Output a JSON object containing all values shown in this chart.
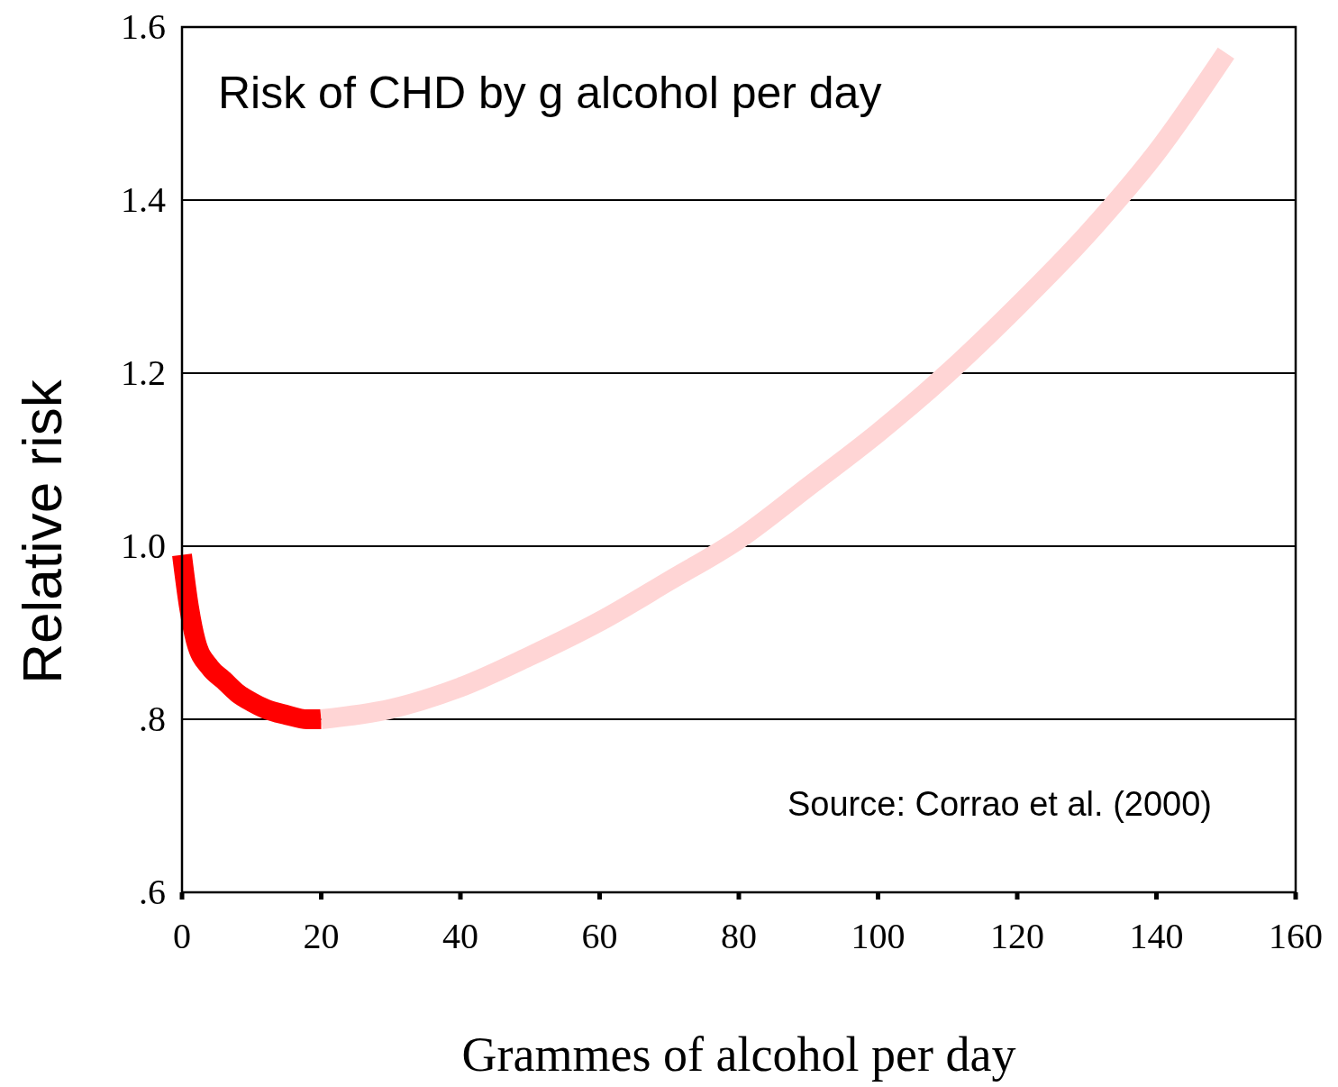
{
  "chart_data": {
    "type": "line",
    "title": "Risk of CHD by g alcohol per day",
    "xlabel": "Grammes of alcohol per day",
    "ylabel": "Relative risk",
    "annotations": [
      "Source: Corrao et al. (2000)"
    ],
    "xlim": [
      0,
      160
    ],
    "xticks": [
      0,
      20,
      40,
      60,
      80,
      100,
      120,
      140,
      160
    ],
    "ylim": [
      0.6,
      1.6
    ],
    "yticks": [
      {
        "value": 0.6,
        "label": ".6"
      },
      {
        "value": 0.8,
        "label": ".8"
      },
      {
        "value": 1.0,
        "label": "1.0"
      },
      {
        "value": 1.2,
        "label": "1.2"
      },
      {
        "value": 1.4,
        "label": "1.4"
      },
      {
        "value": 1.6,
        "label": "1.6"
      }
    ],
    "grid": "y",
    "line_style": "solid",
    "series": [
      {
        "color": "#ff0000",
        "x": [
          0,
          1,
          2,
          4,
          6,
          8,
          10,
          12,
          15,
          18,
          20
        ],
        "values": [
          0.99,
          0.93,
          0.89,
          0.86,
          0.845,
          0.83,
          0.82,
          0.812,
          0.805,
          0.8,
          0.8
        ]
      },
      {
        "color": "#ffd5d5",
        "x": [
          20,
          30,
          40,
          50,
          60,
          70,
          80,
          90,
          100,
          110,
          120,
          130,
          140,
          150
        ],
        "values": [
          0.8,
          0.812,
          0.837,
          0.873,
          0.913,
          0.96,
          1.008,
          1.069,
          1.131,
          1.2,
          1.277,
          1.36,
          1.455,
          1.57
        ]
      }
    ]
  }
}
